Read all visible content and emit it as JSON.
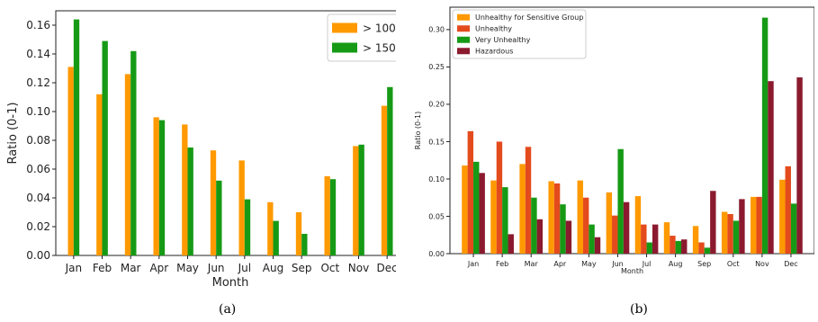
{
  "chart_data": [
    {
      "type": "bar",
      "panel_label": "(a)",
      "categories": [
        "Jan",
        "Feb",
        "Mar",
        "Apr",
        "May",
        "Jun",
        "Jul",
        "Aug",
        "Sep",
        "Oct",
        "Nov",
        "Dec"
      ],
      "series": [
        {
          "name": "> 100",
          "color": "#ff9900",
          "values": [
            0.131,
            0.112,
            0.126,
            0.096,
            0.091,
            0.073,
            0.066,
            0.037,
            0.03,
            0.055,
            0.076,
            0.104
          ]
        },
        {
          "name": "> 150",
          "color": "#169a16",
          "values": [
            0.164,
            0.149,
            0.142,
            0.094,
            0.075,
            0.052,
            0.039,
            0.024,
            0.015,
            0.053,
            0.077,
            0.117
          ]
        }
      ],
      "xlabel": "Month",
      "ylabel": "Ratio (0-1)",
      "ylim": [
        0,
        0.17
      ],
      "yticks": [
        "0.00",
        "0.02",
        "0.04",
        "0.06",
        "0.08",
        "0.10",
        "0.12",
        "0.14",
        "0.16"
      ],
      "legend": "top-right",
      "grid": false
    },
    {
      "type": "bar",
      "panel_label": "(b)",
      "categories": [
        "Jan",
        "Feb",
        "Mar",
        "Apr",
        "May",
        "Jun",
        "Jul",
        "Aug",
        "Sep",
        "Oct",
        "Nov",
        "Dec"
      ],
      "series": [
        {
          "name": "Unhealthy for Sensitive Group",
          "color": "#ff9900",
          "values": [
            0.118,
            0.098,
            0.12,
            0.097,
            0.098,
            0.082,
            0.077,
            0.042,
            0.037,
            0.056,
            0.076,
            0.099
          ]
        },
        {
          "name": "Unhealthy",
          "color": "#e34b1d",
          "values": [
            0.164,
            0.15,
            0.143,
            0.094,
            0.075,
            0.051,
            0.039,
            0.024,
            0.015,
            0.053,
            0.076,
            0.117
          ]
        },
        {
          "name": "Very Unhealthy",
          "color": "#169a16",
          "values": [
            0.123,
            0.089,
            0.075,
            0.066,
            0.039,
            0.14,
            0.015,
            0.017,
            0.008,
            0.044,
            0.316,
            0.067
          ]
        },
        {
          "name": "Hazardous",
          "color": "#8b1a2e",
          "values": [
            0.108,
            0.026,
            0.046,
            0.044,
            0.022,
            0.069,
            0.039,
            0.019,
            0.084,
            0.073,
            0.231,
            0.236
          ]
        }
      ],
      "xlabel": "Month",
      "ylabel": "Ratio (0-1)",
      "ylim": [
        0,
        0.33
      ],
      "yticks": [
        "0.00",
        "0.05",
        "0.10",
        "0.15",
        "0.20",
        "0.25",
        "0.30"
      ],
      "legend": "top-left",
      "grid": false
    }
  ]
}
